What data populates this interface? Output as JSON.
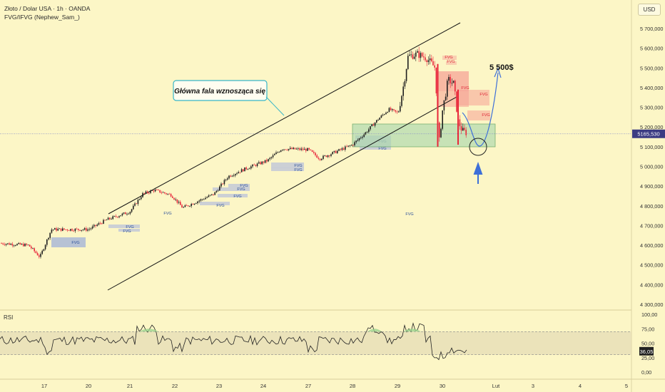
{
  "header": {
    "symbol_title": "Złoto / Dolar USA · 1h · OANDA",
    "indicator_title": "FVG/IFVG (Nephew_Sam_)",
    "currency": "USD"
  },
  "annotations": {
    "wave_callout": "Główna fala wznosząca się",
    "target": "5 500$",
    "fvg_label": "FVG"
  },
  "price_axis": {
    "ticks": [
      "5 700,000",
      "5 600,000",
      "5 500,000",
      "5 400,000",
      "5 300,000",
      "5 200,000",
      "5 100,000",
      "5 000,000",
      "4 900,000",
      "4 800,000",
      "4 700,000",
      "4 600,000",
      "4 500,000",
      "4 400,000",
      "4 300,000"
    ],
    "current_price": "5165,530"
  },
  "rsi": {
    "label": "RSI",
    "ticks": [
      "100,00",
      "75,00",
      "50,00",
      "25,00",
      "0,00"
    ],
    "current_value": "36,05"
  },
  "time_axis": {
    "ticks": [
      "17",
      "20",
      "21",
      "22",
      "23",
      "24",
      "27",
      "28",
      "29",
      "30",
      "Lut",
      "3",
      "4",
      "5"
    ]
  },
  "colors": {
    "background": "#fcf6c6",
    "up_candle": "#1f1f1f",
    "down_candle": "#e8263a",
    "bullish_fvg": "#aab9d6",
    "bearish_fvg": "#f6a096",
    "support_zone": "#b6dcb1",
    "arrow": "#3d6fd8"
  },
  "chart_data": {
    "type": "candlestick",
    "price_range": [
      4250,
      5760
    ],
    "price_unit": "USD",
    "current_price": 5165.53,
    "price_path": [
      {
        "x": "17",
        "price": 4600
      },
      {
        "x": "20",
        "price": 4670
      },
      {
        "x": "21",
        "price": 4860
      },
      {
        "x": "22",
        "price": 4780
      },
      {
        "x": "23",
        "price": 4960
      },
      {
        "x": "24",
        "price": 5080
      },
      {
        "x": "27",
        "price": 5050
      },
      {
        "x": "28",
        "price": 5130
      },
      {
        "x": "29",
        "price": 5560
      },
      {
        "x": "30",
        "price": 5140
      }
    ],
    "projection_target": 5500,
    "rsi_range": [
      0,
      100
    ],
    "rsi_levels": [
      70,
      30
    ],
    "rsi_current": 36.05
  }
}
